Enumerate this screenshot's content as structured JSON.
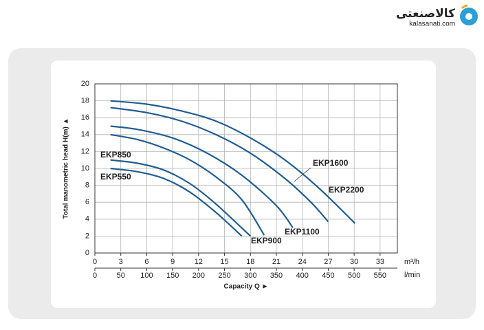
{
  "logo": {
    "name": "کالاصنعتی",
    "site": "kalasanati.com"
  },
  "chart_data": {
    "type": "line",
    "ylabel": "Total manometric head H(m) ▲",
    "xlabel": "Capacity Q ►",
    "x_unit": "m³/h",
    "x2_unit": "l/min",
    "xlim": [
      0,
      35
    ],
    "xticks": [
      0,
      3,
      6,
      9,
      12,
      15,
      18,
      21,
      24,
      27,
      30,
      33
    ],
    "x2lim": [
      0,
      583.33
    ],
    "x2ticks": [
      0,
      50,
      100,
      150,
      200,
      250,
      300,
      350,
      400,
      450,
      500,
      550
    ],
    "ylim": [
      0,
      20
    ],
    "yticks": [
      0,
      2,
      4,
      6,
      8,
      10,
      12,
      14,
      16,
      18,
      20
    ],
    "grid": true,
    "series": [
      {
        "name": "EKP550",
        "color": "#1f5e96",
        "x": [
          1.8,
          5,
          8,
          11,
          14,
          17
        ],
        "values": [
          10,
          9.6,
          8.8,
          7.2,
          4.8,
          2
        ]
      },
      {
        "name": "EKP850",
        "color": "#1f5e96",
        "x": [
          1.8,
          5,
          8,
          11,
          14,
          18
        ],
        "values": [
          11,
          10.6,
          9.8,
          8.2,
          5.8,
          2
        ]
      },
      {
        "name": "EKP900",
        "color": "#1f5e96",
        "x": [
          1.8,
          5,
          8,
          11,
          14,
          17,
          19.6
        ],
        "values": [
          14,
          13.4,
          12.4,
          11,
          9,
          6.3,
          2.1
        ]
      },
      {
        "name": "EKP1100",
        "color": "#1f5e96",
        "x": [
          1.8,
          5,
          9,
          13,
          17,
          21,
          22.9
        ],
        "values": [
          15,
          14.6,
          13.6,
          11.8,
          9.2,
          5.6,
          3
        ]
      },
      {
        "name": "EKP1600",
        "color": "#1f5e96",
        "x": [
          1.8,
          6,
          10,
          14,
          18,
          22,
          25,
          27
        ],
        "values": [
          17.2,
          16.6,
          15.6,
          14,
          11.8,
          8.8,
          6,
          3.7
        ]
      },
      {
        "name": "EKP2200",
        "color": "#1f5e96",
        "x": [
          1.8,
          6,
          10,
          14,
          18,
          22,
          26,
          30.1
        ],
        "values": [
          18,
          17.6,
          16.8,
          15.6,
          13.6,
          11,
          7.6,
          3.5
        ]
      }
    ]
  }
}
